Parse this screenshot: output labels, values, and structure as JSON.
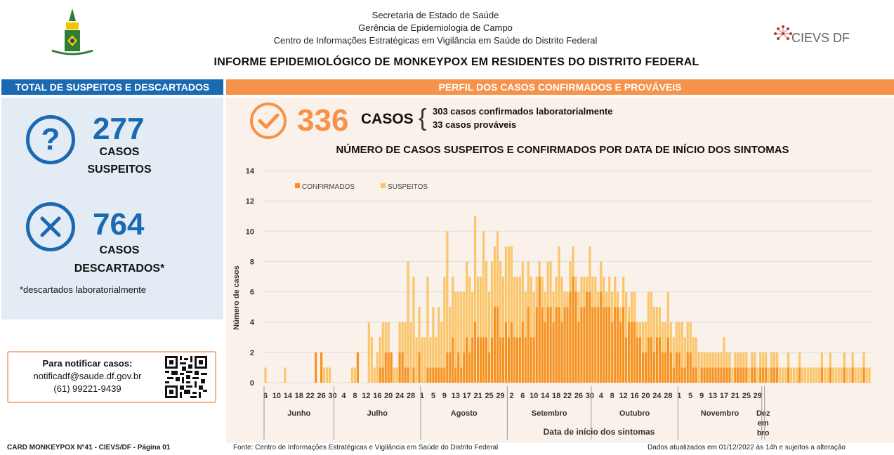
{
  "header": {
    "line1": "Secretaria de Estado de Saúde",
    "line2": "Gerência de Epidemiologia de Campo",
    "line3": "Centro de Informações Estratégicas em Vigilância em Saúde do Distrito Federal",
    "logo_right": "CIEVS DF",
    "title": "INFORME EPIDEMIOLÓGICO DE MONKEYPOX EM RESIDENTES DO DISTRITO FEDERAL"
  },
  "left": {
    "banner": "TOTAL DE SUSPEITOS E DESCARTADOS",
    "suspects_number": "277",
    "suspects_label1": "CASOS",
    "suspects_label2": "SUSPEITOS",
    "discarded_number": "764",
    "discarded_label1": "CASOS",
    "discarded_label2": "DESCARTADOS*",
    "footnote": "*descartados laboratorialmente",
    "notify_title": "Para notificar casos:",
    "notify_email": "notificadf@saude.df.gov.br",
    "notify_phone": "(61) 99221-9439"
  },
  "right": {
    "banner": "PERFIL DOS CASOS CONFIRMADOS E PROVÁVEIS",
    "cases_number": "336",
    "cases_label": "CASOS",
    "cases_detail1": "303 casos confirmados laboratorialmente",
    "cases_detail2": "33 casos prováveis"
  },
  "footer": {
    "left": "CARD MONKEYPOX N°41 - CIEVS/DF - Página 01",
    "center": "Fonte: Centro de Informações Estratégicas e Vigilância em Saúde do Distrito Federal",
    "right": "Dados atualizados em 01/12/2022 às 14h e sujeitos a alteração"
  },
  "colors": {
    "blue": "#1a69b3",
    "orange": "#f7924a",
    "confirmed": "#f7921e",
    "suspects": "#fbc56a",
    "left_panel": "#e3ebf5",
    "right_panel": "#faf1ea"
  },
  "chart_data": {
    "type": "bar",
    "stacked": true,
    "title": "NÚMERO DE CASOS SUSPEITOS E CONFIRMADOS POR DATA DE INÍCIO DOS SINTOMAS",
    "xlabel": "Data de início dos sintomas",
    "ylabel": "Número de casos",
    "ylim": [
      0,
      14
    ],
    "yticks": [
      0,
      2,
      4,
      6,
      8,
      10,
      12,
      14
    ],
    "grid": true,
    "legend_position": "top-left",
    "start_day_label": "6",
    "x_tick_labels": [
      "6",
      "10",
      "14",
      "18",
      "22",
      "26",
      "30",
      "4",
      "8",
      "12",
      "16",
      "20",
      "24",
      "28",
      "1",
      "5",
      "9",
      "13",
      "17",
      "21",
      "25",
      "29",
      "2",
      "6",
      "10",
      "14",
      "18",
      "22",
      "26",
      "30",
      "4",
      "8",
      "12",
      "16",
      "20",
      "24",
      "28",
      "1",
      "5",
      "9",
      "13",
      "17",
      "21",
      "25",
      "29"
    ],
    "months": [
      "Junho",
      "Julho",
      "Agosto",
      "Setembro",
      "Outubro",
      "Novembro",
      "Dez\nem\nbro"
    ],
    "month_lengths": [
      25,
      31,
      31,
      30,
      31,
      30,
      1
    ],
    "series": [
      {
        "name": "CONFIRMADOS",
        "values": [
          0,
          0,
          0,
          0,
          0,
          0,
          0,
          0,
          0,
          0,
          0,
          0,
          0,
          0,
          0,
          0,
          0,
          0,
          2,
          0,
          2,
          0,
          0,
          0,
          0,
          0,
          0,
          0,
          0,
          0,
          0,
          0,
          0,
          2,
          0,
          0,
          0,
          0,
          0,
          0,
          0,
          1,
          1,
          2,
          2,
          2,
          0,
          0,
          2,
          2,
          1,
          1,
          0,
          1,
          0,
          2,
          0,
          0,
          1,
          1,
          1,
          1,
          1,
          1,
          1,
          2,
          2,
          3,
          1,
          2,
          1,
          2,
          3,
          2,
          3,
          4,
          3,
          3,
          3,
          3,
          2,
          3,
          5,
          5,
          3,
          3,
          4,
          3,
          4,
          3,
          3,
          3,
          4,
          3,
          5,
          3,
          3,
          5,
          7,
          5,
          4,
          5,
          5,
          4,
          5,
          5,
          4,
          5,
          5,
          6,
          7,
          6,
          4,
          5,
          5,
          6,
          6,
          5,
          5,
          5,
          6,
          5,
          5,
          5,
          4,
          5,
          5,
          4,
          5,
          3,
          4,
          4,
          4,
          3,
          3,
          2,
          2,
          3,
          3,
          2,
          3,
          3,
          2,
          2,
          3,
          2,
          1,
          2,
          2,
          1,
          1,
          2,
          2,
          1,
          1,
          0,
          1,
          1,
          1,
          1,
          1,
          1,
          1,
          1,
          1,
          1,
          1,
          0,
          1,
          1,
          1,
          1,
          1,
          0,
          1,
          1,
          0,
          1,
          1,
          1,
          0,
          1,
          1,
          1,
          0,
          0,
          0,
          1,
          0,
          0,
          0,
          1,
          0,
          0,
          0,
          0,
          0,
          0,
          0,
          1,
          0,
          0,
          1,
          0,
          0,
          0,
          0,
          1,
          0,
          0,
          1,
          0,
          0,
          0,
          1,
          0,
          0,
          0
        ]
      },
      {
        "name": "SUSPEITOS",
        "values": [
          1,
          0,
          0,
          0,
          0,
          0,
          0,
          1,
          0,
          0,
          0,
          0,
          0,
          0,
          0,
          0,
          0,
          0,
          0,
          0,
          0,
          1,
          1,
          1,
          0,
          0,
          0,
          0,
          0,
          0,
          0,
          1,
          1,
          0,
          0,
          0,
          0,
          4,
          3,
          1,
          2,
          2,
          3,
          2,
          2,
          0,
          1,
          1,
          2,
          2,
          3,
          7,
          4,
          6,
          3,
          3,
          3,
          3,
          6,
          2,
          4,
          2,
          4,
          3,
          6,
          8,
          3,
          4,
          5,
          4,
          5,
          4,
          5,
          5,
          3,
          7,
          4,
          4,
          7,
          5,
          4,
          5,
          4,
          5,
          5,
          4,
          5,
          6,
          5,
          4,
          4,
          4,
          4,
          3,
          3,
          4,
          3,
          2,
          1,
          2,
          2,
          3,
          3,
          2,
          2,
          4,
          3,
          1,
          1,
          2,
          2,
          1,
          2,
          2,
          2,
          1,
          3,
          2,
          2,
          1,
          2,
          2,
          1,
          2,
          2,
          2,
          1,
          1,
          2,
          3,
          1,
          2,
          2,
          1,
          1,
          2,
          2,
          3,
          3,
          3,
          2,
          2,
          2,
          2,
          3,
          2,
          2,
          2,
          2,
          3,
          2,
          2,
          2,
          2,
          2,
          2,
          1,
          1,
          1,
          1,
          1,
          1,
          1,
          1,
          2,
          1,
          1,
          1,
          1,
          1,
          1,
          1,
          1,
          1,
          1,
          1,
          1,
          1,
          1,
          1,
          1,
          1,
          1,
          1,
          1,
          1,
          1,
          1,
          1,
          1,
          1,
          1,
          1,
          1,
          1,
          1,
          1,
          1,
          1,
          1,
          1,
          1,
          1,
          1,
          1,
          1,
          1,
          1,
          1,
          1,
          1,
          1,
          1,
          1,
          1,
          1,
          1
        ]
      }
    ]
  }
}
